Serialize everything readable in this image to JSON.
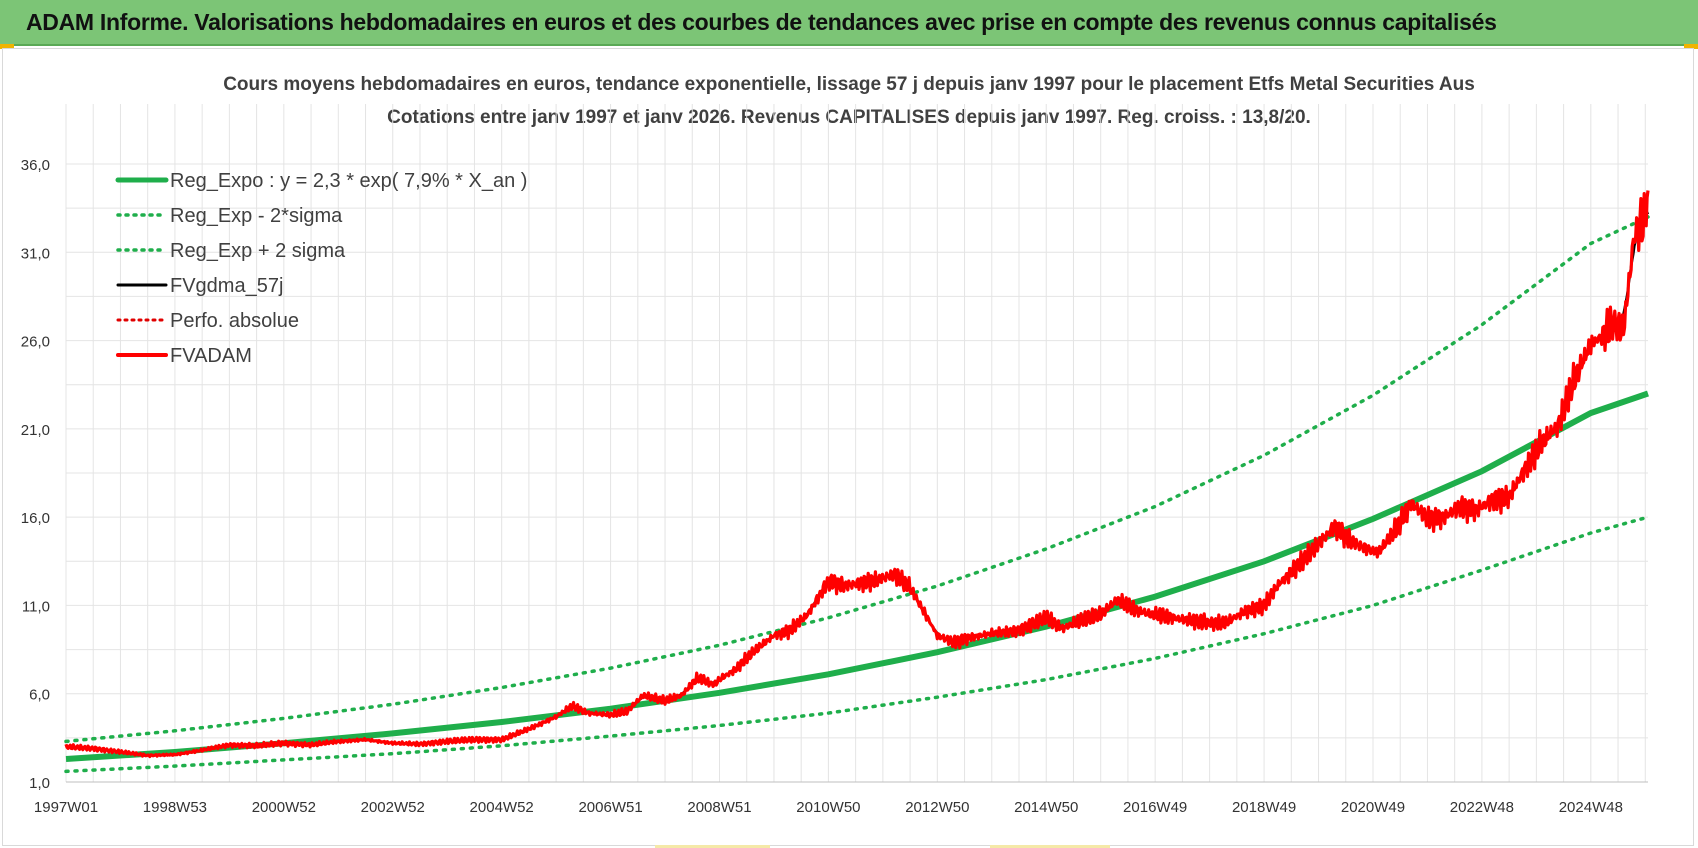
{
  "header": {
    "title": "ADAM Informe. Valorisations hebdomadaires en euros et des courbes de tendances avec prise en compte des revenus connus capitalisés"
  },
  "colors": {
    "header_bg": "#7cc576",
    "reg_expo": "#1fae4b",
    "sigma": "#1fae4b",
    "fvgdma": "#000000",
    "perfo": "#e00000",
    "fvadam": "#ff0000"
  },
  "chart_data": {
    "type": "line",
    "title": "Cours moyens hebdomadaires en euros, tendance exponentielle, lissage 57 j depuis janv 1997  pour le placement Etfs Metal Securities Aus",
    "subtitle": "Cotations entre janv 1997 et janv 2026. Revenus  CAPITALISES depuis janv 1997. Reg. croiss. : 13,8/20.",
    "xlabel": "",
    "ylabel": "",
    "ylim": [
      1.0,
      36.0
    ],
    "y_ticks": [
      "1,0",
      "6,0",
      "11,0",
      "16,0",
      "21,0",
      "26,0",
      "31,0",
      "36,0"
    ],
    "x_range": [
      1997.0,
      2026.05
    ],
    "x_ticks": [
      {
        "label": "1997W01",
        "year": 1997.0
      },
      {
        "label": "1998W53",
        "year": 1999.0
      },
      {
        "label": "2000W52",
        "year": 2001.0
      },
      {
        "label": "2002W52",
        "year": 2003.0
      },
      {
        "label": "2004W52",
        "year": 2005.0
      },
      {
        "label": "2006W51",
        "year": 2007.0
      },
      {
        "label": "2008W51",
        "year": 2009.0
      },
      {
        "label": "2010W50",
        "year": 2011.0
      },
      {
        "label": "2012W50",
        "year": 2013.0
      },
      {
        "label": "2014W50",
        "year": 2015.0
      },
      {
        "label": "2016W49",
        "year": 2017.0
      },
      {
        "label": "2018W49",
        "year": 2019.0
      },
      {
        "label": "2020W49",
        "year": 2021.0
      },
      {
        "label": "2022W48",
        "year": 2023.0
      },
      {
        "label": "2024W48",
        "year": 2025.0
      }
    ],
    "grid": true,
    "legend_position": "top-left",
    "legend": [
      {
        "key": "reg_expo",
        "label": "Reg_Expo : y = 2,3 * exp( 7,9% *  X_an )",
        "style": "solid-thick"
      },
      {
        "key": "reg_lower",
        "label": "Reg_Exp - 2*sigma",
        "style": "dotted"
      },
      {
        "key": "reg_upper",
        "label": "Reg_Exp + 2 sigma",
        "style": "dotted"
      },
      {
        "key": "fvgdma",
        "label": "FVgdma_57j",
        "style": "solid"
      },
      {
        "key": "perfo",
        "label": "Perfo. absolue",
        "style": "dotted-red"
      },
      {
        "key": "fvadam",
        "label": "FVADAM",
        "style": "solid-red"
      }
    ],
    "series": [
      {
        "key": "reg_expo",
        "values_x": [
          1997,
          1999,
          2001,
          2003,
          2005,
          2007,
          2009,
          2011,
          2013,
          2015,
          2017,
          2019,
          2021,
          2023,
          2025,
          2026.05
        ],
        "values_y": [
          2.3,
          2.7,
          3.2,
          3.75,
          4.4,
          5.15,
          6.05,
          7.1,
          8.35,
          9.8,
          11.5,
          13.5,
          15.9,
          18.6,
          21.9,
          23.0
        ]
      },
      {
        "key": "reg_lower",
        "values_x": [
          1997,
          1999,
          2001,
          2003,
          2005,
          2007,
          2009,
          2011,
          2013,
          2015,
          2017,
          2019,
          2021,
          2023,
          2025,
          2026.05
        ],
        "values_y": [
          1.6,
          1.9,
          2.25,
          2.6,
          3.05,
          3.6,
          4.2,
          4.9,
          5.8,
          6.8,
          8.0,
          9.4,
          11.0,
          13.0,
          15.1,
          16.0
        ]
      },
      {
        "key": "reg_upper",
        "values_x": [
          1997,
          1999,
          2001,
          2003,
          2005,
          2007,
          2009,
          2011,
          2013,
          2015,
          2017,
          2019,
          2021,
          2023,
          2025,
          2026.05
        ],
        "values_y": [
          3.3,
          3.9,
          4.6,
          5.4,
          6.35,
          7.45,
          8.75,
          10.3,
          12.1,
          14.2,
          16.6,
          19.5,
          22.9,
          26.9,
          31.5,
          33.0
        ]
      },
      {
        "key": "fvadam",
        "values_x": [
          1997.0,
          1997.5,
          1998.0,
          1998.5,
          1999.0,
          1999.5,
          2000.0,
          2000.5,
          2001.0,
          2001.5,
          2002.0,
          2002.5,
          2003.0,
          2003.5,
          2004.0,
          2004.5,
          2005.0,
          2005.5,
          2006.0,
          2006.3,
          2006.6,
          2007.0,
          2007.3,
          2007.6,
          2008.0,
          2008.3,
          2008.6,
          2008.9,
          2009.0,
          2009.3,
          2009.6,
          2010.0,
          2010.3,
          2010.6,
          2011.0,
          2011.3,
          2011.6,
          2011.9,
          2012.2,
          2012.5,
          2012.8,
          2013.0,
          2013.3,
          2013.6,
          2014.0,
          2014.5,
          2015.0,
          2015.3,
          2015.6,
          2016.0,
          2016.3,
          2016.6,
          2016.9,
          2017.2,
          2017.5,
          2017.8,
          2018.0,
          2018.3,
          2018.6,
          2019.0,
          2019.3,
          2019.6,
          2020.0,
          2020.3,
          2020.6,
          2020.9,
          2021.1,
          2021.4,
          2021.7,
          2022.0,
          2022.3,
          2022.6,
          2022.9,
          2023.2,
          2023.5,
          2023.8,
          2024.1,
          2024.4,
          2024.7,
          2025.0,
          2025.2,
          2025.4,
          2025.6,
          2025.8,
          2026.0,
          2026.05
        ],
        "values_y": [
          3.0,
          2.9,
          2.7,
          2.5,
          2.55,
          2.8,
          3.1,
          3.05,
          3.2,
          3.1,
          3.3,
          3.4,
          3.2,
          3.15,
          3.3,
          3.4,
          3.4,
          4.0,
          4.7,
          5.3,
          4.9,
          4.8,
          5.0,
          5.9,
          5.6,
          5.9,
          6.9,
          6.5,
          6.8,
          7.4,
          8.3,
          9.3,
          9.6,
          10.4,
          12.4,
          12.1,
          12.3,
          12.4,
          12.8,
          12.0,
          10.4,
          9.3,
          8.9,
          9.2,
          9.4,
          9.6,
          10.3,
          9.7,
          10.1,
          10.5,
          11.3,
          10.8,
          10.5,
          10.4,
          10.2,
          10.1,
          10.0,
          10.0,
          10.6,
          11.0,
          12.3,
          13.2,
          14.5,
          15.5,
          14.6,
          14.2,
          14.0,
          15.2,
          16.8,
          15.9,
          16.0,
          16.6,
          16.4,
          17.0,
          17.1,
          18.8,
          20.2,
          21.2,
          23.8,
          25.8,
          26.2,
          27.0,
          26.6,
          32.0,
          33.0,
          34.5
        ]
      }
    ]
  }
}
